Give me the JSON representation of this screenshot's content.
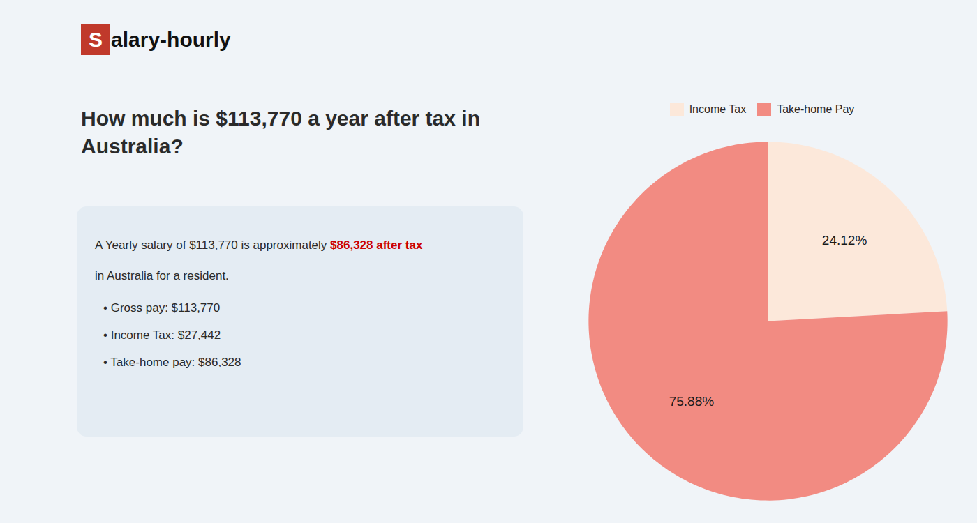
{
  "chart_data": {
    "type": "pie",
    "title": [
      "How much is $113,770 a year after tax in",
      "Australia?"
    ],
    "categories": [
      "Income Tax",
      "Take-home Pay"
    ],
    "values": [
      24.12,
      75.88
    ],
    "value_labels": [
      "24.12%",
      "75.88%"
    ],
    "colors": [
      "#fce8da",
      "#f28b82"
    ],
    "data_labels": true,
    "legend": "top",
    "annotations": [
      [
        {
          "text": "S",
          "color": "#ffffff"
        },
        {
          "text": "alary-hourly"
        }
      ],
      [
        {
          "text": "A Yearly salary of $113,770 is approximately "
        },
        {
          "text": "$86,328 after tax",
          "color": "#cc0000"
        }
      ],
      [
        {
          "text": "in Australia for a resident."
        }
      ],
      [
        {
          "text": "•  Gross pay: $113,770"
        }
      ],
      [
        {
          "text": "•  Income Tax: $27,442"
        }
      ],
      [
        {
          "text": "•  Take-home pay: $86,328"
        }
      ]
    ]
  }
}
